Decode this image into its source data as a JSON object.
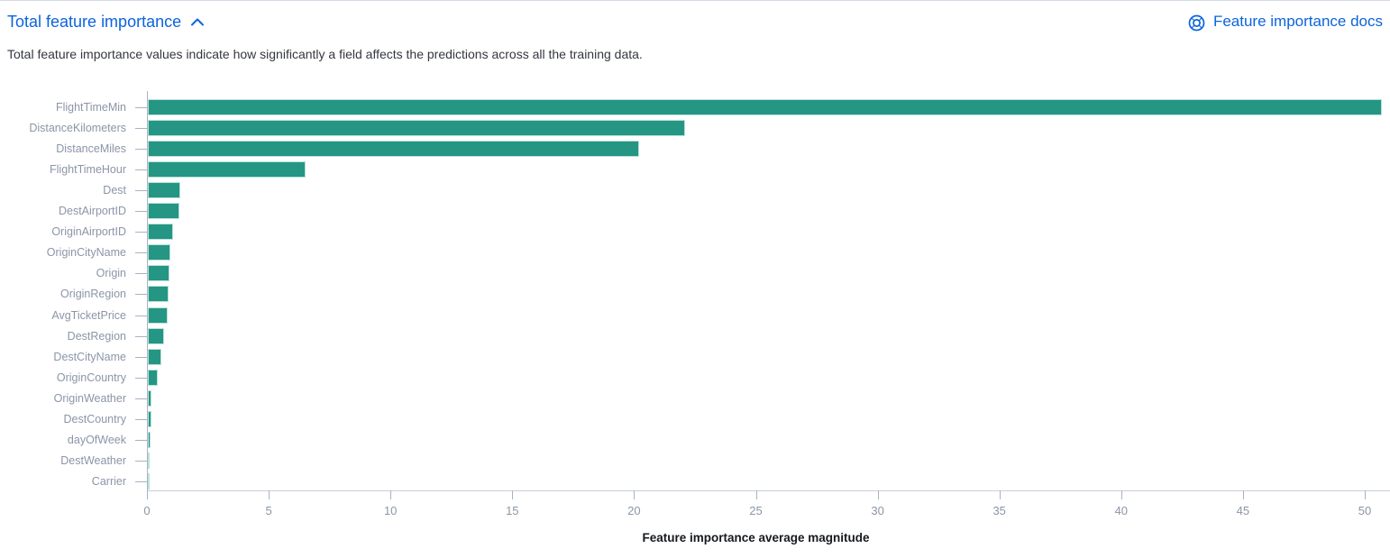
{
  "page": {
    "title": "Total feature importance",
    "docs_link_label": "Feature importance docs",
    "description": "Total feature importance values indicate how significantly a field affects the predictions across all the training data."
  },
  "icons": {
    "collapse": "chevron-up-icon",
    "docs": "documentation-icon"
  },
  "colors": {
    "link": "#0b64dd",
    "bar_fill": "#259584",
    "bar_stroke": "#b9e3da",
    "axis_line": "#c9cfdb",
    "tick_mark": "#a9b2c3",
    "tick_label": "#8b95a8",
    "body_text": "#343741",
    "axis_title_text": "#16191f"
  },
  "chart_data": {
    "type": "bar",
    "orientation": "horizontal",
    "title": "Total feature importance",
    "xlabel": "Feature importance average magnitude",
    "ylabel": "",
    "categories": [
      "FlightTimeMin",
      "DistanceKilometers",
      "DistanceMiles",
      "FlightTimeHour",
      "Dest",
      "DestAirportID",
      "OriginAirportID",
      "OriginCityName",
      "Origin",
      "OriginRegion",
      "AvgTicketPrice",
      "DestRegion",
      "DestCityName",
      "OriginCountry",
      "OriginWeather",
      "DestCountry",
      "dayOfWeek",
      "DestWeather",
      "Carrier"
    ],
    "values": [
      50.7,
      22.1,
      20.2,
      6.5,
      1.36,
      1.35,
      1.06,
      0.96,
      0.93,
      0.89,
      0.85,
      0.71,
      0.59,
      0.44,
      0.2,
      0.18,
      0.16,
      0.12,
      0.05
    ],
    "xlim": [
      0,
      51
    ],
    "x_ticks": [
      0,
      5,
      10,
      15,
      20,
      25,
      30,
      35,
      40,
      45,
      50
    ],
    "grid": false,
    "legend": false,
    "bar_color": "#259584"
  }
}
